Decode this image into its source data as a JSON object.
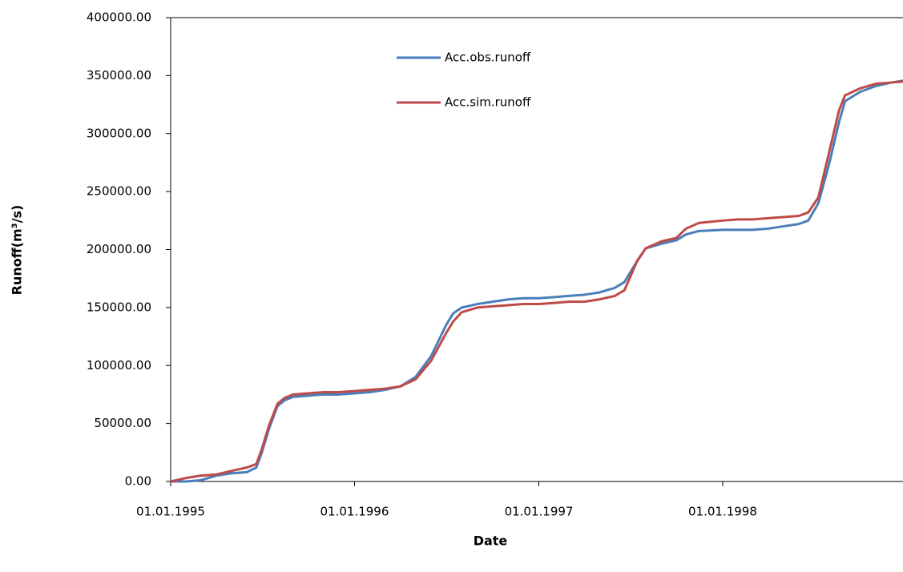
{
  "chart_data": {
    "type": "line",
    "x_label": "Date",
    "y_label": "Runoff(m³/s)",
    "x": [
      "1995-01-01",
      "1995-02-01",
      "1995-03-01",
      "1995-04-01",
      "1995-05-01",
      "1995-06-01",
      "1995-06-20",
      "1995-07-01",
      "1995-07-15",
      "1995-08-01",
      "1995-08-15",
      "1995-09-01",
      "1995-10-01",
      "1995-11-01",
      "1995-12-01",
      "1996-01-01",
      "1996-02-01",
      "1996-03-01",
      "1996-04-01",
      "1996-05-01",
      "1996-06-01",
      "1996-07-01",
      "1996-07-15",
      "1996-08-01",
      "1996-09-01",
      "1996-10-01",
      "1996-11-01",
      "1996-12-01",
      "1997-01-01",
      "1997-02-01",
      "1997-03-01",
      "1997-04-01",
      "1997-05-01",
      "1997-06-01",
      "1997-06-20",
      "1997-07-15",
      "1997-08-01",
      "1997-09-01",
      "1997-10-01",
      "1997-10-20",
      "1997-11-15",
      "1998-01-01",
      "1998-02-01",
      "1998-03-01",
      "1998-04-01",
      "1998-05-01",
      "1998-06-01",
      "1998-06-20",
      "1998-07-10",
      "1998-08-01",
      "1998-08-20",
      "1998-09-01",
      "1998-10-01",
      "1998-11-01",
      "1998-12-01",
      "1998-12-31"
    ],
    "series": [
      {
        "name": "Acc.obs.runoff",
        "color": "#4a7ebb",
        "values": [
          0,
          0,
          1000,
          5000,
          7000,
          8000,
          12000,
          25000,
          45000,
          65000,
          70000,
          73000,
          74000,
          75000,
          75000,
          76000,
          77000,
          79000,
          82000,
          90000,
          108000,
          135000,
          145000,
          150000,
          153000,
          155000,
          157000,
          158000,
          158000,
          159000,
          160000,
          161000,
          163000,
          167000,
          172000,
          190000,
          201000,
          205000,
          208000,
          213000,
          216000,
          217000,
          217000,
          217000,
          218000,
          220000,
          222000,
          225000,
          240000,
          275000,
          310000,
          328000,
          336000,
          341000,
          344000,
          346000
        ]
      },
      {
        "name": "Acc.sim.runoff",
        "color": "#be4b48",
        "values": [
          0,
          3000,
          5000,
          6000,
          9000,
          12000,
          15000,
          28000,
          48000,
          67000,
          72000,
          75000,
          76000,
          77000,
          77000,
          78000,
          79000,
          80000,
          82000,
          88000,
          104000,
          128000,
          138000,
          146000,
          150000,
          151000,
          152000,
          153000,
          153000,
          154000,
          155000,
          155000,
          157000,
          160000,
          165000,
          190000,
          201000,
          207000,
          210000,
          218000,
          223000,
          225000,
          226000,
          226000,
          227000,
          228000,
          229000,
          232000,
          245000,
          285000,
          320000,
          333000,
          339000,
          343000,
          344000,
          345000
        ]
      }
    ],
    "xlim": [
      "1995-01-01",
      "1998-12-25"
    ],
    "xticks": [
      {
        "value": "1995-01-01",
        "label": "01.01.1995"
      },
      {
        "value": "1996-01-01",
        "label": "01.01.1996"
      },
      {
        "value": "1997-01-01",
        "label": "01.01.1997"
      },
      {
        "value": "1998-01-01",
        "label": "01.01.1998"
      }
    ],
    "ylim": [
      0,
      400000
    ],
    "yticks": [
      {
        "value": 0,
        "label": "0.00"
      },
      {
        "value": 50000,
        "label": "50000.00"
      },
      {
        "value": 100000,
        "label": "100000.00"
      },
      {
        "value": 150000,
        "label": "150000.00"
      },
      {
        "value": 200000,
        "label": "200000.00"
      },
      {
        "value": 250000,
        "label": "250000.00"
      },
      {
        "value": 300000,
        "label": "300000.00"
      },
      {
        "value": 350000,
        "label": "350000.00"
      },
      {
        "value": 400000,
        "label": "400000.00"
      }
    ],
    "grid": false,
    "legend": "top"
  }
}
